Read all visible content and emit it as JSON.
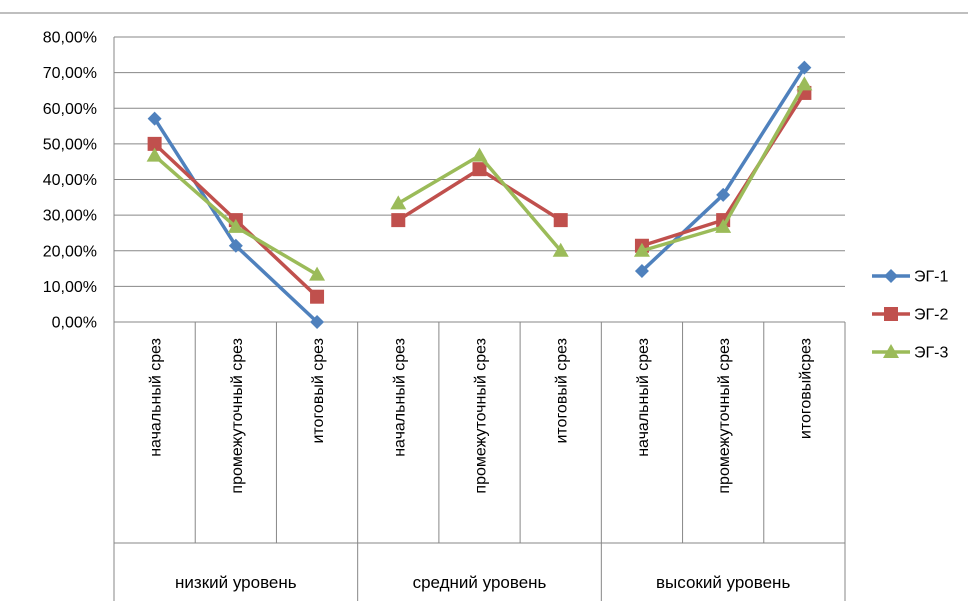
{
  "chart_data": {
    "type": "line",
    "title": "",
    "xlabel": "",
    "ylabel": "",
    "ylim": [
      0,
      0.8
    ],
    "y_ticks": [
      "0,00%",
      "10,00%",
      "20,00%",
      "30,00%",
      "40,00%",
      "50,00%",
      "60,00%",
      "70,00%",
      "80,00%"
    ],
    "grid": "horizontal",
    "legend_position": "right",
    "groups": [
      {
        "label": "низкий уровень",
        "categories": [
          "начальный срез",
          "промежуточный срез",
          "итоговый срез"
        ]
      },
      {
        "label": "средний уровень",
        "categories": [
          "начальный срез",
          "промежуточный срез",
          "итоговый срез"
        ]
      },
      {
        "label": "высокий уровень",
        "categories": [
          "начальный срез",
          "промежуточный срез",
          "итоговыйсрез"
        ]
      }
    ],
    "series": [
      {
        "name": "ЭГ-1",
        "color": "#4F81BD",
        "marker": "diamond",
        "values": [
          0.571,
          0.214,
          0.0,
          null,
          null,
          null,
          0.143,
          0.357,
          0.714
        ]
      },
      {
        "name": "ЭГ-2",
        "color": "#C0504D",
        "marker": "square",
        "values": [
          0.5,
          0.286,
          0.071,
          0.286,
          0.429,
          0.286,
          0.214,
          0.286,
          0.643
        ]
      },
      {
        "name": "ЭГ-3",
        "color": "#9BBB59",
        "marker": "triangle",
        "values": [
          0.467,
          0.267,
          0.133,
          0.333,
          0.467,
          0.2,
          0.2,
          0.267,
          0.667
        ]
      }
    ]
  }
}
